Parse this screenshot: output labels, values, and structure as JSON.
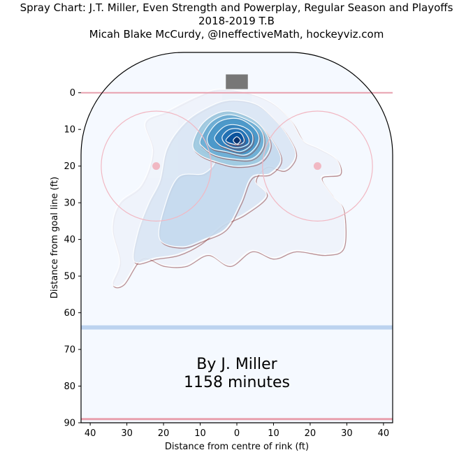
{
  "chart_data": {
    "type": "heatmap",
    "title": "Spray Chart: J.T. Miller, Even Strength and Powerplay, Regular Season and Playoffs",
    "subtitle": "2018-2019 T.B",
    "credit": "Micah Blake McCurdy, @IneffectiveMath, hockeyviz.com",
    "xlabel": "Distance from centre of rink (ft)",
    "ylabel": "Distance from goal line (ft)",
    "x_ticks": [
      40,
      30,
      20,
      10,
      0,
      10,
      20,
      30,
      40
    ],
    "x_tick_values": [
      -40,
      -30,
      -20,
      -10,
      0,
      10,
      20,
      30,
      40
    ],
    "y_ticks": [
      0,
      10,
      20,
      30,
      40,
      50,
      60,
      70,
      80,
      90
    ],
    "xlim": [
      -42.5,
      42.5
    ],
    "ylim": [
      -11,
      90
    ],
    "annotation_line1": "By J. Miller",
    "annotation_line2": "1158 minutes",
    "rink": {
      "goal_line_y": 0,
      "blue_line_y": 64,
      "red_line_y": 89,
      "faceoff_circles": [
        {
          "x": -22,
          "y": 20,
          "r": 15
        },
        {
          "x": 22,
          "y": 20,
          "r": 15
        }
      ],
      "net": {
        "x": 0,
        "y": -3,
        "width": 6,
        "depth": 4
      }
    },
    "density_levels": [
      {
        "level": 1,
        "points": [
          [
            -34,
            52
          ],
          [
            -32,
            46
          ],
          [
            -34,
            37
          ],
          [
            -32,
            30
          ],
          [
            -26,
            25
          ],
          [
            -23,
            16
          ],
          [
            -25,
            8
          ],
          [
            -19,
            5
          ],
          [
            -11,
            1
          ],
          [
            -5,
            -1
          ],
          [
            3,
            0
          ],
          [
            10,
            3
          ],
          [
            15,
            8
          ],
          [
            18,
            13
          ],
          [
            22,
            15
          ],
          [
            27,
            18
          ],
          [
            28,
            22
          ],
          [
            23,
            23
          ],
          [
            26,
            28
          ],
          [
            29,
            32
          ],
          [
            29,
            42
          ],
          [
            24,
            44
          ],
          [
            16,
            43
          ],
          [
            10,
            45
          ],
          [
            4,
            43
          ],
          [
            -2,
            47
          ],
          [
            -8,
            44
          ],
          [
            -14,
            47
          ],
          [
            -20,
            47
          ],
          [
            -26,
            45
          ],
          [
            -31,
            52
          ]
        ]
      },
      {
        "level": 2,
        "points": [
          [
            -28,
            46
          ],
          [
            -27,
            38
          ],
          [
            -24,
            30
          ],
          [
            -21,
            24
          ],
          [
            -19,
            15
          ],
          [
            -14,
            8
          ],
          [
            -8,
            4
          ],
          [
            -2,
            2
          ],
          [
            5,
            3
          ],
          [
            10,
            7
          ],
          [
            14,
            12
          ],
          [
            16,
            17
          ],
          [
            13,
            21
          ],
          [
            8,
            20
          ],
          [
            5,
            24
          ],
          [
            8,
            28
          ],
          [
            2,
            33
          ],
          [
            -4,
            36
          ],
          [
            -10,
            41
          ],
          [
            -16,
            44
          ],
          [
            -22,
            45
          ]
        ]
      },
      {
        "level": 3,
        "points": [
          [
            -21,
            40
          ],
          [
            -20,
            32
          ],
          [
            -16,
            23
          ],
          [
            -9,
            22
          ],
          [
            -6,
            18
          ],
          [
            -11,
            14
          ],
          [
            -8,
            8
          ],
          [
            -2,
            6
          ],
          [
            5,
            8
          ],
          [
            9,
            12
          ],
          [
            12,
            18
          ],
          [
            9,
            22
          ],
          [
            4,
            23
          ],
          [
            1,
            30
          ],
          [
            -3,
            37
          ],
          [
            -9,
            40
          ],
          [
            -15,
            42
          ]
        ]
      },
      {
        "level": 4,
        "points": [
          [
            -12,
            14
          ],
          [
            -9,
            8
          ],
          [
            -3,
            5
          ],
          [
            4,
            7
          ],
          [
            8,
            11
          ],
          [
            9,
            15
          ],
          [
            6,
            19
          ],
          [
            0,
            20
          ],
          [
            -5,
            19
          ],
          [
            -10,
            17
          ]
        ]
      },
      {
        "level": 5,
        "points": [
          [
            -10,
            13
          ],
          [
            -7,
            8
          ],
          [
            -2,
            6
          ],
          [
            4,
            8
          ],
          [
            7,
            11
          ],
          [
            7,
            15
          ],
          [
            4,
            18
          ],
          [
            -1,
            18
          ],
          [
            -6,
            17
          ],
          [
            -9,
            15
          ]
        ]
      },
      {
        "level": 6,
        "points": [
          [
            -8,
            12
          ],
          [
            -5,
            8
          ],
          [
            0,
            7
          ],
          [
            4,
            9
          ],
          [
            6,
            12
          ],
          [
            5,
            15
          ],
          [
            2,
            17
          ],
          [
            -3,
            16
          ],
          [
            -7,
            15
          ]
        ]
      },
      {
        "level": 7,
        "points": [
          [
            -6,
            12
          ],
          [
            -3,
            9
          ],
          [
            1,
            9
          ],
          [
            4,
            11
          ],
          [
            4,
            14
          ],
          [
            1,
            16
          ],
          [
            -3,
            15
          ],
          [
            -5,
            14
          ]
        ]
      },
      {
        "level": 8,
        "points": [
          [
            -4,
            12
          ],
          [
            -2,
            10
          ],
          [
            1,
            10
          ],
          [
            3,
            12
          ],
          [
            3,
            14
          ],
          [
            0,
            15
          ],
          [
            -3,
            14
          ]
        ]
      },
      {
        "level": 9,
        "points": [
          [
            -3,
            13
          ],
          [
            -1,
            11
          ],
          [
            1,
            11
          ],
          [
            2,
            13
          ],
          [
            1,
            14
          ],
          [
            -1,
            14
          ]
        ]
      },
      {
        "level": 10,
        "points": [
          [
            -1,
            13
          ],
          [
            0,
            12
          ],
          [
            1,
            13
          ],
          [
            0,
            14
          ]
        ]
      }
    ],
    "palette": [
      "#eff3fb",
      "#dbe7f5",
      "#c6dbef",
      "#9ecae1",
      "#6baed6",
      "#4a98c9",
      "#3182bd",
      "#2171b5",
      "#08519c",
      "#08306b"
    ],
    "crease_color": "#b8e6f2",
    "rink_fill": "#f5f9ff",
    "red_line_color": "#e8a0ae",
    "blue_line_color": "#bcd3ef",
    "circle_color": "#f1b8c3"
  }
}
